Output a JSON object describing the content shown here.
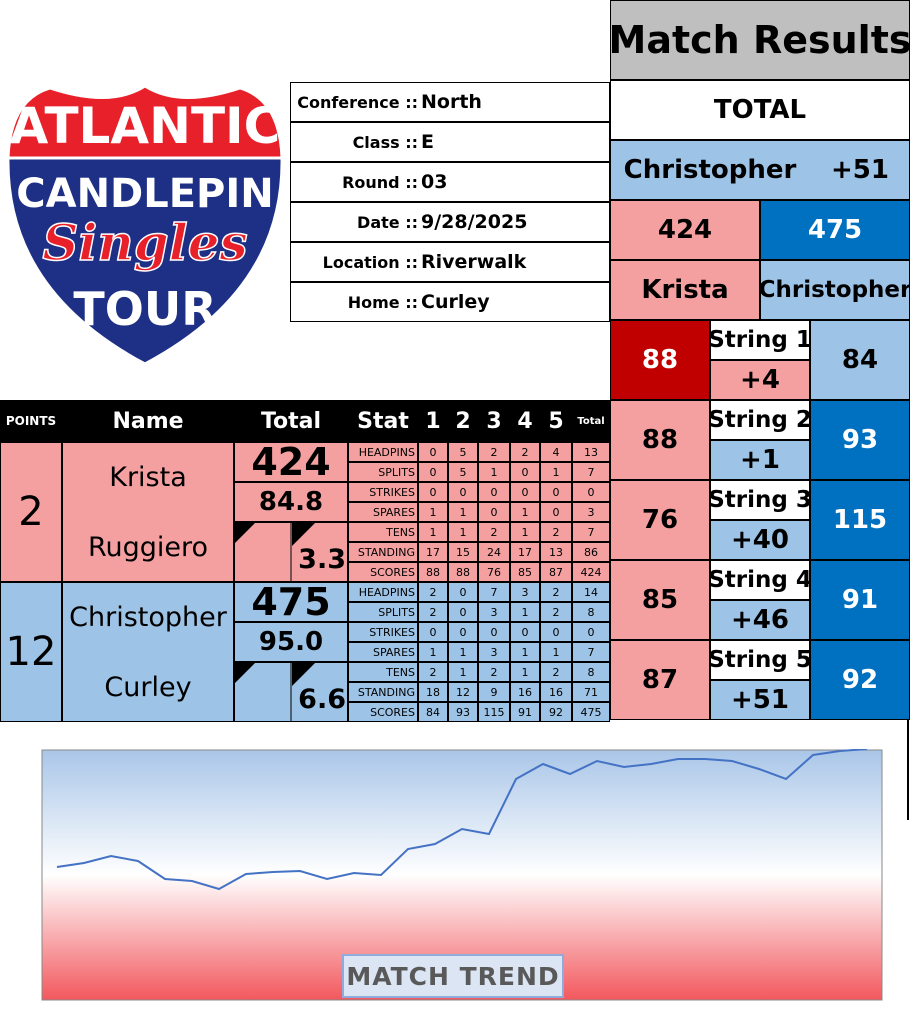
{
  "logo": {
    "line1": "ATLANTIC",
    "line2": "CANDLEPIN",
    "line3": "Singles",
    "line4": "TOUR"
  },
  "info": [
    {
      "label": "Conference ::",
      "value": "North"
    },
    {
      "label": "Class ::",
      "value": "E"
    },
    {
      "label": "Round ::",
      "value": "03"
    },
    {
      "label": "Date ::",
      "value": "9/28/2025"
    },
    {
      "label": "Location ::",
      "value": "Riverwalk"
    },
    {
      "label": "Home ::",
      "value": "Curley"
    }
  ],
  "results": {
    "title": "Match Results",
    "total_label": "TOTAL",
    "leader": "Christopher",
    "lead": "+51",
    "score_a": 424,
    "score_b": 475,
    "name_a": "Krista",
    "name_b": "Christopher",
    "strings": [
      {
        "label": "String 1",
        "a": 88,
        "b": 84,
        "diff": "+4"
      },
      {
        "label": "String 2",
        "a": 88,
        "b": 93,
        "diff": "+1"
      },
      {
        "label": "String 3",
        "a": 76,
        "b": 115,
        "diff": "+40"
      },
      {
        "label": "String 4",
        "a": 85,
        "b": 91,
        "diff": "+46"
      },
      {
        "label": "String 5",
        "a": 87,
        "b": 92,
        "diff": "+51"
      }
    ]
  },
  "table": {
    "header": {
      "points": "POINTS",
      "name": "Name",
      "total": "Total",
      "stat": "Stat",
      "cols": [
        "1",
        "2",
        "3",
        "4",
        "5",
        "Total"
      ]
    },
    "players": [
      {
        "color": "#f4a0a0",
        "points": 2,
        "first": "Krista",
        "last": "Ruggiero",
        "total": 424,
        "average": "84.8",
        "diff": "3.3",
        "stats": [
          {
            "name": "HEADPINS",
            "values": [
              0,
              5,
              2,
              2,
              4,
              13
            ]
          },
          {
            "name": "SPLITS",
            "values": [
              0,
              5,
              1,
              0,
              1,
              7
            ]
          },
          {
            "name": "STRIKES",
            "values": [
              0,
              0,
              0,
              0,
              0,
              0
            ]
          },
          {
            "name": "SPARES",
            "values": [
              1,
              1,
              0,
              1,
              0,
              3
            ]
          },
          {
            "name": "TENS",
            "values": [
              1,
              1,
              2,
              1,
              2,
              7
            ]
          },
          {
            "name": "STANDING",
            "values": [
              17,
              15,
              24,
              17,
              13,
              86
            ]
          },
          {
            "name": "SCORES",
            "values": [
              88,
              88,
              76,
              85,
              87,
              424
            ]
          }
        ]
      },
      {
        "color": "#9dc3e6",
        "points": 12,
        "first": "Christopher",
        "last": "Curley",
        "total": 475,
        "average": "95.0",
        "diff": "6.6",
        "stats": [
          {
            "name": "HEADPINS",
            "values": [
              2,
              0,
              7,
              3,
              2,
              14
            ]
          },
          {
            "name": "SPLITS",
            "values": [
              2,
              0,
              3,
              1,
              2,
              8
            ]
          },
          {
            "name": "STRIKES",
            "values": [
              0,
              0,
              0,
              0,
              0,
              0
            ]
          },
          {
            "name": "SPARES",
            "values": [
              1,
              1,
              3,
              1,
              1,
              7
            ]
          },
          {
            "name": "TENS",
            "values": [
              2,
              1,
              2,
              1,
              2,
              8
            ]
          },
          {
            "name": "STANDING",
            "values": [
              18,
              12,
              9,
              16,
              16,
              71
            ]
          },
          {
            "name": "SCORES",
            "values": [
              84,
              93,
              115,
              91,
              92,
              475
            ]
          }
        ]
      }
    ]
  },
  "trend": {
    "title": "MATCH TREND",
    "ylim": [
      0,
      100
    ],
    "values": [
      52.8,
      54.4,
      57.2,
      55.2,
      48,
      47.2,
      44,
      50,
      50.8,
      51.2,
      48,
      50.4,
      49.6,
      60,
      62,
      68,
      66,
      88,
      94,
      90,
      95.2,
      92.8,
      94,
      96,
      96,
      95.2,
      92,
      88,
      97.6,
      99.2,
      100
    ]
  }
}
